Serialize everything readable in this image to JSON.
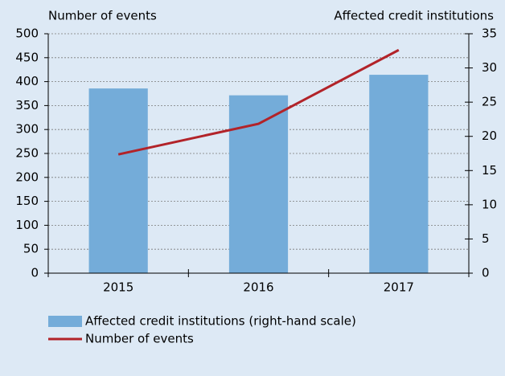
{
  "chart_data": {
    "type": "bar",
    "ylabel": "Number of events",
    "y2label": "Affected credit institutions",
    "categories": [
      "2015",
      "2016",
      "2017"
    ],
    "series": [
      {
        "name": "Affected credit institutions (right-hand scale)",
        "type": "bar",
        "axis": "y2",
        "color": "#74acd9",
        "values": [
          27,
          26,
          29
        ]
      },
      {
        "name": "Number of events",
        "type": "line",
        "color": "#b22329",
        "values": [
          248,
          312,
          466
        ]
      }
    ],
    "ylim": [
      0,
      500
    ],
    "yticks": [
      0,
      50,
      100,
      150,
      200,
      250,
      300,
      350,
      400,
      450,
      500
    ],
    "y2lim": [
      0,
      35
    ],
    "y2ticks": [
      0,
      5,
      10,
      15,
      20,
      25,
      30,
      35
    ],
    "grid": true,
    "legend": "bottom",
    "background": "#dde9f5"
  }
}
